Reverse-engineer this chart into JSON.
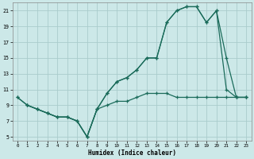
{
  "xlabel": "Humidex (Indice chaleur)",
  "bg_color": "#cce8e8",
  "grid_color": "#aacccc",
  "line_color": "#1a6b5a",
  "xlim": [
    -0.5,
    23.5
  ],
  "ylim": [
    4.5,
    22
  ],
  "xticks": [
    0,
    1,
    2,
    3,
    4,
    5,
    6,
    7,
    8,
    9,
    10,
    11,
    12,
    13,
    14,
    15,
    16,
    17,
    18,
    19,
    20,
    21,
    22,
    23
  ],
  "yticks": [
    5,
    7,
    9,
    11,
    13,
    15,
    17,
    19,
    21
  ],
  "line1_x": [
    1,
    2,
    3,
    4,
    5,
    6,
    7,
    8,
    9,
    10,
    11,
    12,
    13,
    14,
    15,
    16,
    17,
    18,
    19,
    20,
    21,
    22,
    23
  ],
  "line1_y": [
    9,
    8.5,
    8,
    7.5,
    7.5,
    7,
    5,
    8.5,
    9,
    9.5,
    9.5,
    10,
    10.5,
    10.5,
    10.5,
    10,
    10,
    10,
    10,
    10,
    10,
    10,
    10
  ],
  "line2_x": [
    0,
    1,
    2,
    3,
    4,
    5,
    6,
    7,
    8,
    9,
    10,
    11,
    12,
    13,
    14,
    15,
    16,
    17,
    18,
    19,
    20,
    21,
    22,
    23
  ],
  "line2_y": [
    10,
    9,
    8.5,
    8,
    7.5,
    7.5,
    7,
    5,
    8.5,
    10.5,
    12,
    12.5,
    13.5,
    15,
    15,
    19.5,
    21,
    21.5,
    21.5,
    19.5,
    21,
    11,
    10,
    10
  ],
  "line3_x": [
    0,
    1,
    2,
    3,
    4,
    5,
    6,
    7,
    8,
    9,
    10,
    11,
    12,
    13,
    14,
    15,
    16,
    17,
    18,
    19,
    20,
    21,
    22,
    23
  ],
  "line3_y": [
    10,
    9,
    8.5,
    8,
    7.5,
    7.5,
    7,
    5,
    8.5,
    10.5,
    12,
    12.5,
    13.5,
    15,
    15,
    19.5,
    21,
    21.5,
    21.5,
    19.5,
    21,
    15,
    10,
    10
  ]
}
